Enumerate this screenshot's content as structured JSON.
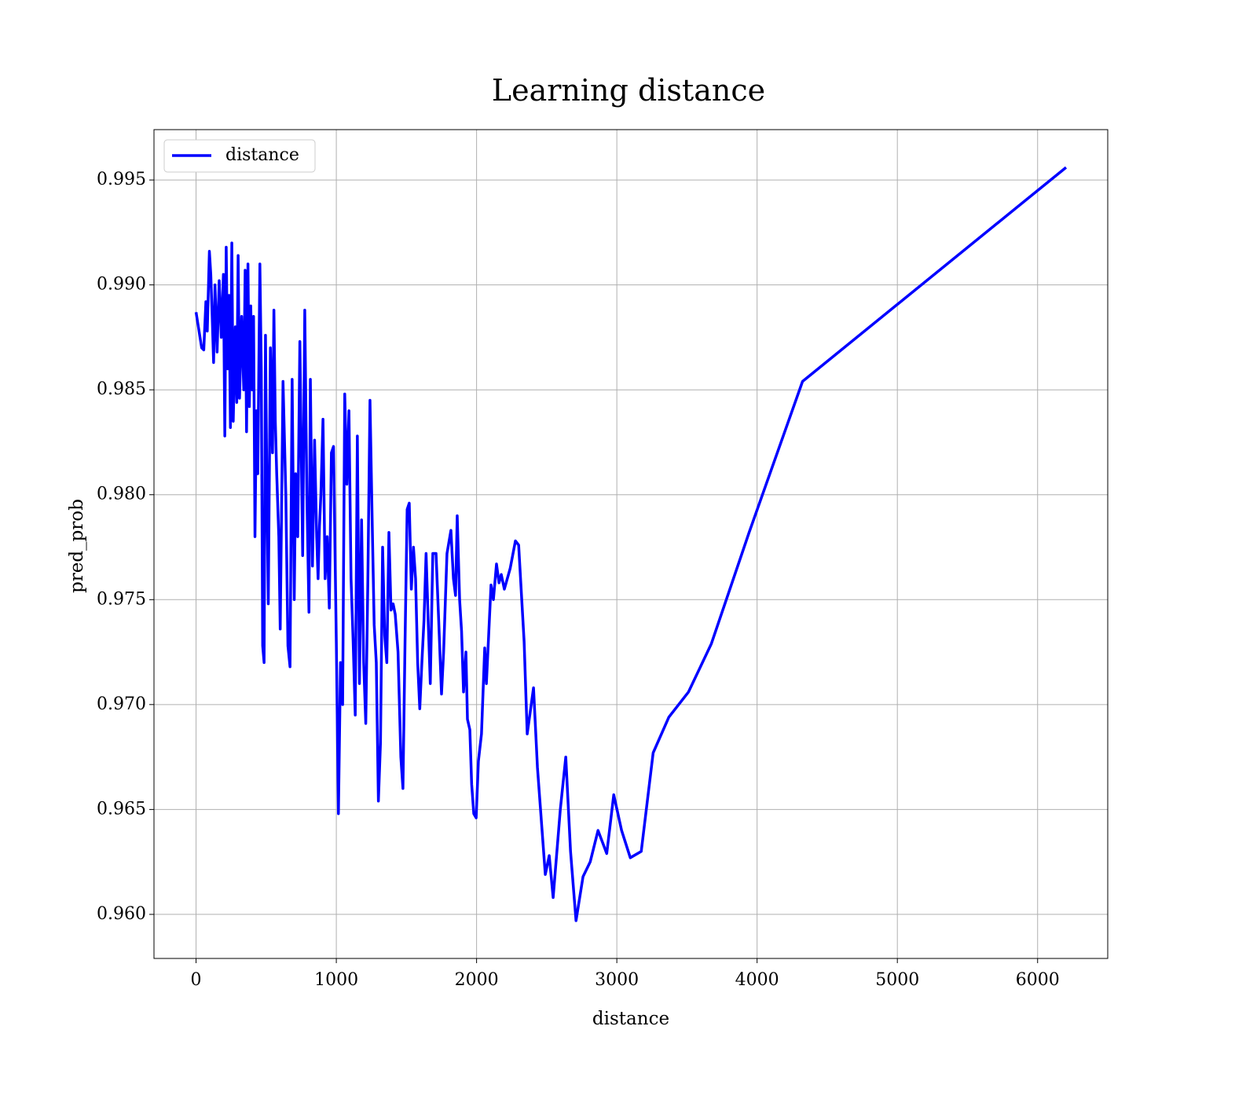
{
  "chart_data": {
    "type": "line",
    "title": "Learning distance",
    "x_label": "distance",
    "y_label": "pred_prob",
    "xlim": [
      -300,
      6500
    ],
    "ylim": [
      0.9579,
      0.9974
    ],
    "xticks": [
      0,
      1000,
      2000,
      3000,
      4000,
      5000,
      6000
    ],
    "yticks": [
      {
        "value": 0.96,
        "label": "0.960"
      },
      0.965,
      {
        "value": 0.97,
        "label": "0.970"
      },
      0.975,
      {
        "value": 0.98,
        "label": "0.980"
      },
      0.985,
      {
        "value": 0.99,
        "label": "0.990"
      },
      0.995
    ],
    "grid": true,
    "legend_position": "upper left",
    "x": [
      0,
      40,
      55,
      70,
      80,
      95,
      105,
      115,
      125,
      135,
      150,
      165,
      180,
      195,
      205,
      215,
      225,
      235,
      245,
      255,
      265,
      280,
      290,
      300,
      310,
      325,
      340,
      350,
      360,
      370,
      380,
      390,
      400,
      410,
      420,
      430,
      440,
      455,
      465,
      475,
      485,
      495,
      505,
      515,
      530,
      545,
      555,
      565,
      575,
      590,
      600,
      620,
      640,
      655,
      670,
      685,
      700,
      710,
      725,
      740,
      760,
      775,
      790,
      805,
      815,
      830,
      845,
      860,
      870,
      880,
      890,
      905,
      920,
      935,
      950,
      965,
      980,
      1000,
      1015,
      1030,
      1045,
      1060,
      1075,
      1090,
      1105,
      1120,
      1135,
      1150,
      1165,
      1180,
      1195,
      1210,
      1225,
      1240,
      1255,
      1270,
      1285,
      1300,
      1315,
      1330,
      1345,
      1360,
      1375,
      1390,
      1405,
      1420,
      1440,
      1460,
      1475,
      1490,
      1505,
      1520,
      1535,
      1550,
      1565,
      1580,
      1595,
      1610,
      1625,
      1640,
      1655,
      1670,
      1688,
      1711,
      1730,
      1750,
      1765,
      1789,
      1817,
      1835,
      1850,
      1862,
      1879,
      1893,
      1907,
      1924,
      1935,
      1952,
      1965,
      1980,
      1997,
      2013,
      2035,
      2058,
      2070,
      2103,
      2120,
      2142,
      2160,
      2176,
      2198,
      2240,
      2277,
      2300,
      2339,
      2361,
      2406,
      2434,
      2490,
      2518,
      2546,
      2597,
      2636,
      2670,
      2709,
      2759,
      2810,
      2866,
      2928,
      2978,
      3034,
      3096,
      3174,
      3259,
      3371,
      3511,
      3674,
      3943,
      4324,
      6203
    ],
    "series": [
      {
        "name": "distance",
        "color": "#0000ff",
        "values": [
          0.9887,
          0.987,
          0.9869,
          0.9892,
          0.9878,
          0.9916,
          0.9905,
          0.9885,
          0.9863,
          0.99,
          0.9868,
          0.9902,
          0.9875,
          0.9905,
          0.9828,
          0.9918,
          0.986,
          0.9895,
          0.9832,
          0.992,
          0.9835,
          0.988,
          0.9844,
          0.9914,
          0.9846,
          0.9885,
          0.985,
          0.9907,
          0.983,
          0.991,
          0.9842,
          0.989,
          0.985,
          0.9885,
          0.978,
          0.984,
          0.981,
          0.991,
          0.986,
          0.9728,
          0.972,
          0.9876,
          0.9802,
          0.9748,
          0.987,
          0.982,
          0.9888,
          0.9835,
          0.981,
          0.978,
          0.9736,
          0.9854,
          0.98,
          0.9728,
          0.9718,
          0.9855,
          0.975,
          0.981,
          0.978,
          0.9873,
          0.9771,
          0.9888,
          0.98,
          0.9744,
          0.9855,
          0.9766,
          0.9826,
          0.978,
          0.976,
          0.9785,
          0.98,
          0.9836,
          0.976,
          0.978,
          0.9746,
          0.982,
          0.9823,
          0.973,
          0.9648,
          0.972,
          0.97,
          0.9848,
          0.9805,
          0.984,
          0.976,
          0.973,
          0.9695,
          0.9828,
          0.971,
          0.9788,
          0.972,
          0.9691,
          0.976,
          0.9845,
          0.979,
          0.9738,
          0.972,
          0.9654,
          0.9682,
          0.9775,
          0.9733,
          0.972,
          0.9782,
          0.9745,
          0.9748,
          0.9743,
          0.9725,
          0.9675,
          0.966,
          0.973,
          0.9793,
          0.9796,
          0.9755,
          0.9775,
          0.976,
          0.972,
          0.9698,
          0.972,
          0.974,
          0.9772,
          0.974,
          0.971,
          0.9772,
          0.9772,
          0.974,
          0.9705,
          0.9725,
          0.9772,
          0.9783,
          0.976,
          0.9752,
          0.979,
          0.975,
          0.9735,
          0.9706,
          0.9725,
          0.9693,
          0.9688,
          0.9662,
          0.9648,
          0.9646,
          0.9673,
          0.9686,
          0.9727,
          0.971,
          0.9757,
          0.975,
          0.9767,
          0.9758,
          0.9762,
          0.9755,
          0.9765,
          0.9778,
          0.9776,
          0.973,
          0.9686,
          0.9708,
          0.967,
          0.9619,
          0.9628,
          0.9608,
          0.965,
          0.9675,
          0.963,
          0.9597,
          0.9618,
          0.9625,
          0.964,
          0.9629,
          0.9657,
          0.964,
          0.9627,
          0.963,
          0.9677,
          0.9694,
          0.9706,
          0.9729,
          0.9782,
          0.9854,
          0.9956
        ]
      }
    ]
  }
}
